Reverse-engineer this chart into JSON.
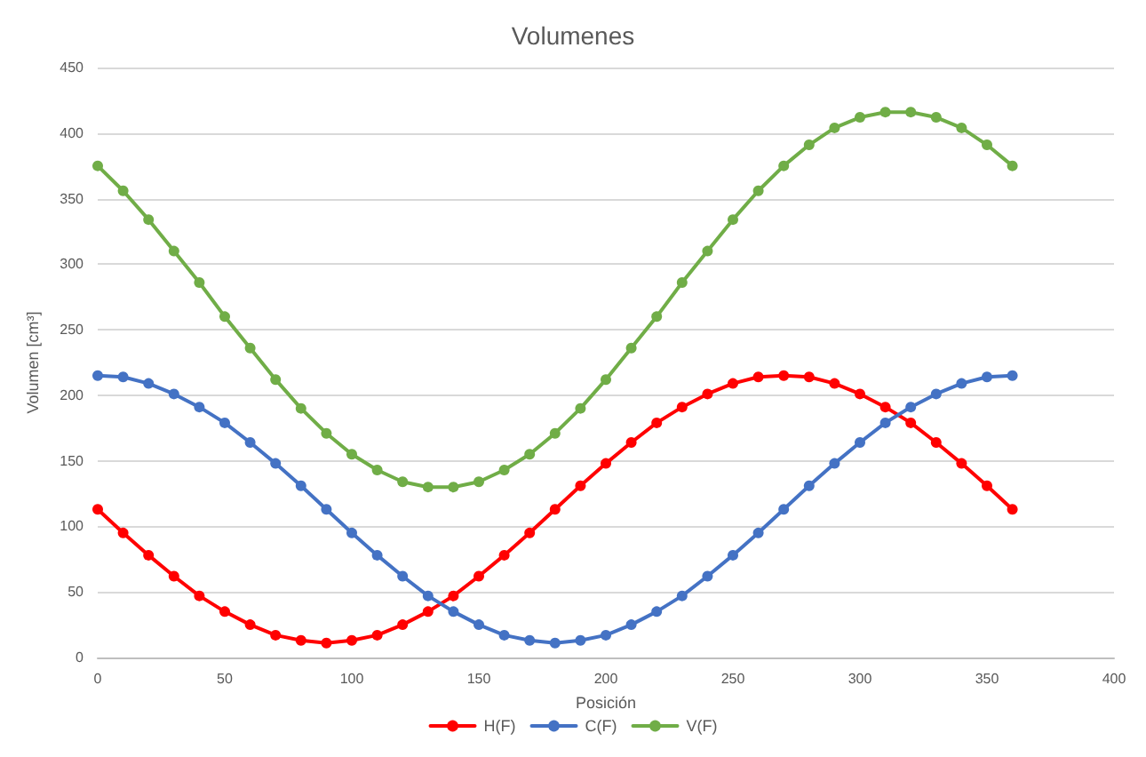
{
  "chart_data": {
    "type": "line",
    "title": "Volumenes",
    "xlabel": "Posición",
    "ylabel": "Volumen [cm³]",
    "x": [
      0,
      10,
      20,
      30,
      40,
      50,
      60,
      70,
      80,
      90,
      100,
      110,
      120,
      130,
      140,
      150,
      160,
      170,
      180,
      190,
      200,
      210,
      220,
      230,
      240,
      250,
      260,
      270,
      280,
      290,
      300,
      310,
      320,
      330,
      340,
      350,
      360
    ],
    "series": [
      {
        "name": "H(F)",
        "color": "#ff0000",
        "values": [
          113,
          95,
          78,
          62,
          47,
          35,
          25,
          17,
          13,
          11,
          13,
          17,
          25,
          35,
          47,
          62,
          78,
          95,
          113,
          131,
          148,
          164,
          179,
          191,
          201,
          209,
          214,
          215,
          214,
          209,
          201,
          191,
          179,
          164,
          148,
          131,
          113
        ]
      },
      {
        "name": "C(F)",
        "color": "#4472c4",
        "values": [
          215,
          214,
          209,
          201,
          191,
          179,
          164,
          148,
          131,
          113,
          95,
          78,
          62,
          47,
          35,
          25,
          17,
          13,
          11,
          13,
          17,
          25,
          35,
          47,
          62,
          78,
          95,
          113,
          131,
          148,
          164,
          179,
          191,
          201,
          209,
          214,
          215
        ]
      },
      {
        "name": "V(F)",
        "color": "#70ad47",
        "values": [
          375,
          356,
          334,
          310,
          286,
          260,
          236,
          212,
          190,
          171,
          155,
          143,
          134,
          130,
          130,
          134,
          143,
          155,
          171,
          190,
          212,
          236,
          260,
          286,
          310,
          334,
          356,
          375,
          391,
          404,
          412,
          416,
          416,
          412,
          404,
          391,
          375
        ]
      }
    ],
    "xlim": [
      0,
      400
    ],
    "xticks": [
      0,
      50,
      100,
      150,
      200,
      250,
      300,
      350,
      400
    ],
    "ylim": [
      0,
      450
    ],
    "yticks": [
      0,
      50,
      100,
      150,
      200,
      250,
      300,
      350,
      400,
      450
    ],
    "grid": "y",
    "legend": "bottom",
    "marker": "circle",
    "line_style": "solid"
  }
}
